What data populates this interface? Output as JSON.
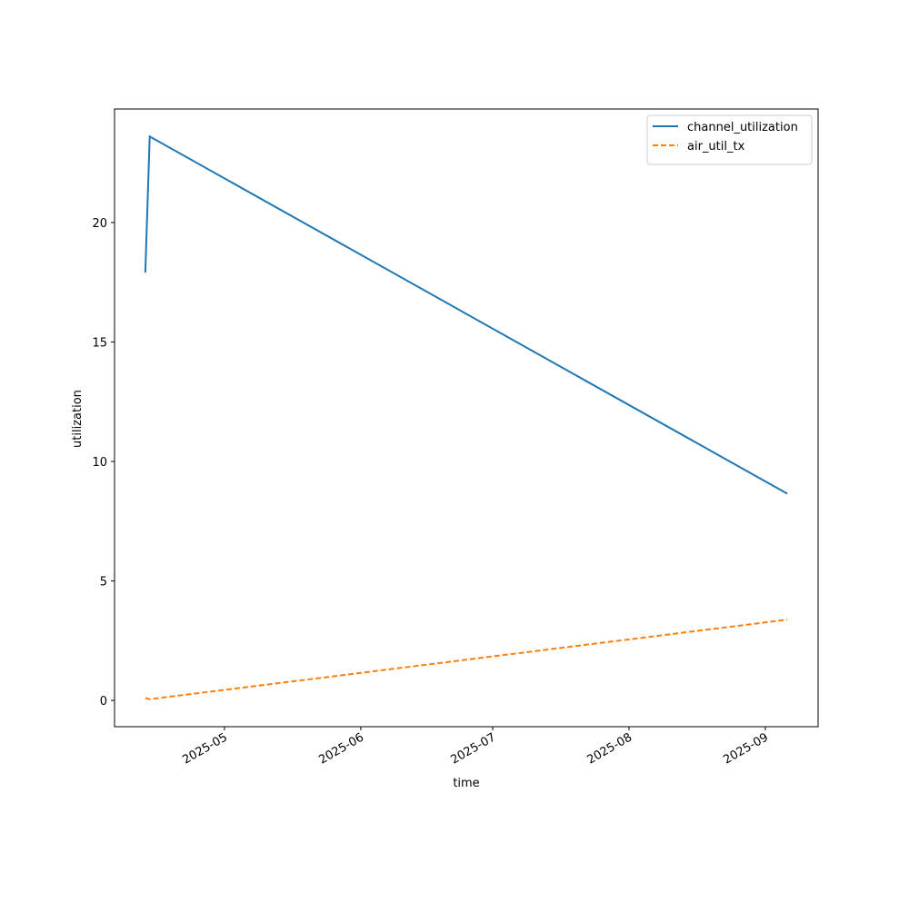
{
  "chart_data": {
    "type": "line",
    "xlabel": "time",
    "ylabel": "utilization",
    "x": [
      "2025-04-13",
      "2025-04-14",
      "2025-09-06"
    ],
    "series": [
      {
        "name": "channel_utilization",
        "color": "#1f77b4",
        "linestyle": "solid",
        "values": [
          17.9,
          23.6,
          8.65
        ]
      },
      {
        "name": "air_util_tx",
        "color": "#ff7f0e",
        "linestyle": "dashed",
        "values": [
          0.1,
          0.05,
          3.38
        ]
      }
    ],
    "xlim": [
      "2025-04-06",
      "2025-09-13"
    ],
    "xticks": [
      "2025-05",
      "2025-06",
      "2025-07",
      "2025-08",
      "2025-09"
    ],
    "ylim": [
      -1.1,
      24.75
    ],
    "yticks": [
      0,
      5,
      10,
      15,
      20
    ],
    "legend": "upper right"
  }
}
